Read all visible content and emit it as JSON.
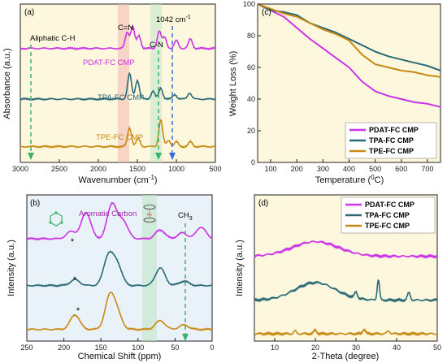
{
  "colors": {
    "magenta": "#cc33e6",
    "teal": "#2a6a78",
    "gold": "#c88a12",
    "green": "#3bb36a",
    "blue": "#3a6fd8",
    "pink": "#f4b8b2"
  },
  "chart_data": [
    {
      "id": "a",
      "panel_label": "(a)",
      "type": "line",
      "xlabel": "Wavenumber (cm",
      "xlabel_sup": "-1",
      "xlabel_end": ")",
      "ylabel": "Absorbance (a.u.)",
      "xlim": [
        3000,
        500
      ],
      "ticks": [
        3000,
        2500,
        2000,
        1500,
        1000,
        500
      ],
      "annotations": {
        "aliphatic": "Aliphatic C-H",
        "cn_double": "C=N",
        "cn_single": "C-N",
        "peak": "1042 cm",
        "peak_sup": "-1"
      },
      "series": [
        {
          "name": "PDAT-FC CMP",
          "color": "#cc33e6",
          "offset": 0.72,
          "peaks": [
            [
              1630,
              0.1
            ],
            [
              1560,
              0.14
            ],
            [
              1480,
              0.08
            ],
            [
              1220,
              0.11
            ],
            [
              1150,
              0.07
            ],
            [
              1000,
              0.05
            ],
            [
              820,
              0.06
            ]
          ]
        },
        {
          "name": "TPA-FC CMP",
          "color": "#2a6a78",
          "offset": 0.4,
          "peaks": [
            [
              1600,
              0.16
            ],
            [
              1500,
              0.12
            ],
            [
              1300,
              0.05
            ],
            [
              1200,
              0.07
            ],
            [
              1020,
              0.03
            ],
            [
              830,
              0.04
            ]
          ]
        },
        {
          "name": "TPE-FC CMP",
          "color": "#c88a12",
          "offset": 0.1,
          "peaks": [
            [
              1600,
              0.12
            ],
            [
              1490,
              0.05
            ],
            [
              1200,
              0.17
            ],
            [
              1100,
              0.04
            ],
            [
              1000,
              0.03
            ],
            [
              820,
              0.03
            ]
          ]
        }
      ]
    },
    {
      "id": "b",
      "panel_label": "(b)",
      "type": "line",
      "xlabel": "Chemical Shift (ppm)",
      "ylabel": "Intensity (a.u.)",
      "xlim": [
        250,
        0
      ],
      "ticks": [
        250,
        200,
        150,
        100,
        50,
        0
      ],
      "annotations": {
        "aromatic": "Aromatic Carbon",
        "ch3": "CH",
        "ch3_sub": "3",
        "star": "*",
        "fe": "Fe"
      },
      "series": [
        {
          "name": "PDAT-FC CMP",
          "color": "#cc33e6",
          "offset": 0.7,
          "peaks": [
            [
              190,
              0.05
            ],
            [
              170,
              0.18
            ],
            [
              135,
              0.24
            ],
            [
              120,
              0.12
            ],
            [
              70,
              0.06
            ],
            [
              40,
              0.04
            ],
            [
              15,
              0.08
            ]
          ]
        },
        {
          "name": "TPA-FC CMP",
          "color": "#2a6a78",
          "offset": 0.38,
          "peaks": [
            [
              185,
              0.04
            ],
            [
              140,
              0.2
            ],
            [
              128,
              0.14
            ],
            [
              70,
              0.12
            ],
            [
              38,
              0.03
            ]
          ]
        },
        {
          "name": "TPE-FC CMP",
          "color": "#c88a12",
          "offset": 0.08,
          "peaks": [
            [
              185,
              0.1
            ],
            [
              138,
              0.22
            ],
            [
              128,
              0.1
            ],
            [
              70,
              0.06
            ],
            [
              38,
              0.03
            ]
          ]
        }
      ]
    },
    {
      "id": "c",
      "panel_label": "(c)",
      "type": "line",
      "xlabel": "Temperature (",
      "xlabel_sup": "0",
      "xlabel_end": "C)",
      "ylabel": "Weight Loss (%)",
      "xlim": [
        50,
        750
      ],
      "ylim": [
        0,
        100
      ],
      "xticks": [
        100,
        200,
        300,
        400,
        500,
        600,
        700
      ],
      "yticks": [
        0,
        20,
        40,
        60,
        80,
        100
      ],
      "legend_position": "bottom-right",
      "series": [
        {
          "name": "PDAT-FC CMP",
          "color": "#cc33e6",
          "x": [
            50,
            100,
            150,
            200,
            250,
            300,
            350,
            400,
            450,
            500,
            550,
            600,
            650,
            700,
            750
          ],
          "y": [
            100,
            96,
            92,
            85,
            78,
            72,
            66,
            60,
            51,
            45,
            42,
            40,
            38,
            37,
            35
          ]
        },
        {
          "name": "TPA-FC CMP",
          "color": "#2a6a78",
          "x": [
            50,
            100,
            150,
            200,
            250,
            300,
            350,
            400,
            450,
            500,
            550,
            600,
            650,
            700,
            750
          ],
          "y": [
            100,
            96,
            95,
            93,
            88,
            85,
            82,
            78,
            74,
            70,
            67,
            65,
            63,
            61,
            58
          ]
        },
        {
          "name": "TPE-FC CMP",
          "color": "#c88a12",
          "x": [
            50,
            100,
            150,
            200,
            250,
            300,
            350,
            400,
            450,
            500,
            550,
            600,
            650,
            700,
            750
          ],
          "y": [
            100,
            97,
            94,
            92,
            88,
            84,
            81,
            77,
            68,
            62,
            60,
            58,
            57,
            55,
            54
          ]
        }
      ]
    },
    {
      "id": "d",
      "panel_label": "(d)",
      "type": "line",
      "xlabel": "2-Theta (degree)",
      "ylabel": "Intensity (a.u.)",
      "xlim": [
        5,
        50
      ],
      "xticks": [
        10,
        20,
        30,
        40,
        50
      ],
      "legend_position": "top-right",
      "series": [
        {
          "name": "PDAT-FC CMP",
          "color": "#cc33e6",
          "offset": 0.58,
          "peaks": [
            [
              20,
              0.1,
              8
            ]
          ]
        },
        {
          "name": "TPA-FC CMP",
          "color": "#2a6a78",
          "offset": 0.28,
          "peaks": [
            [
              20,
              0.12,
              7
            ],
            [
              30,
              0.04,
              0.5
            ],
            [
              35.5,
              0.14,
              0.4
            ],
            [
              43,
              0.05,
              0.5
            ]
          ]
        },
        {
          "name": "TPE-FC CMP",
          "color": "#c88a12",
          "offset": 0.05,
          "peaks": [
            [
              15,
              0.02,
              0.4
            ],
            [
              20,
              0.025,
              0.5
            ],
            [
              32,
              0.03,
              0.5
            ],
            [
              38,
              0.02,
              0.5
            ]
          ]
        }
      ]
    }
  ]
}
